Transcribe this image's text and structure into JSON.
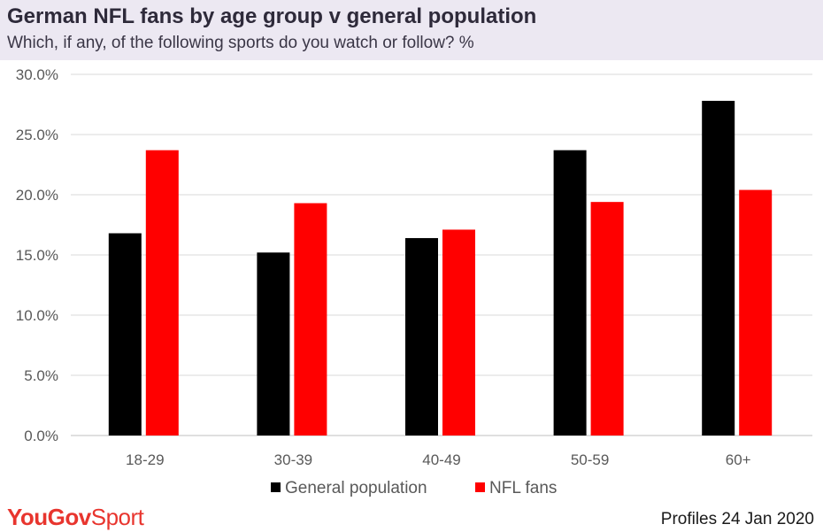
{
  "header": {
    "title": "German NFL fans by age group v general population",
    "subtitle": "Which, if any, of the following sports do you watch or follow? %"
  },
  "chart_data": {
    "type": "bar",
    "categories": [
      "18-29",
      "30-39",
      "40-49",
      "50-59",
      "60+"
    ],
    "series": [
      {
        "name": "General population",
        "color": "#000000",
        "values": [
          16.8,
          15.2,
          16.4,
          23.7,
          27.8
        ]
      },
      {
        "name": "NFL fans",
        "color": "#ff0000",
        "values": [
          23.7,
          19.3,
          17.1,
          19.4,
          20.4
        ]
      }
    ],
    "yticks": [
      "0.0%",
      "5.0%",
      "10.0%",
      "15.0%",
      "20.0%",
      "25.0%",
      "30.0%"
    ],
    "ylim": [
      0,
      30
    ],
    "grid": true,
    "legend": "bottom-center"
  },
  "footer": {
    "brand_main": "YouGov",
    "brand_sub": "Sport",
    "brand_color": "#e8352e",
    "source": "Profiles 24 Jan 2020"
  }
}
